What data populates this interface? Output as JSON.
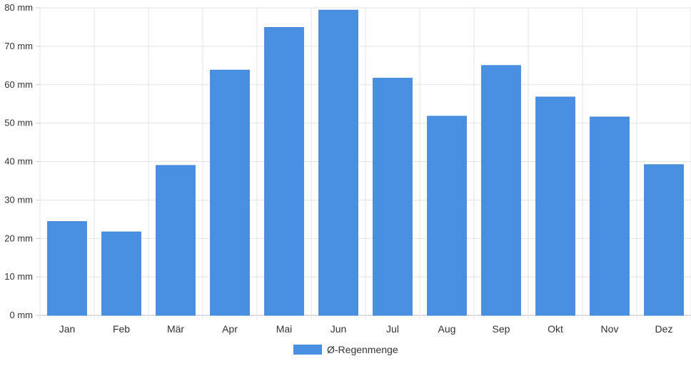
{
  "chart_data": {
    "type": "bar",
    "categories": [
      "Jan",
      "Feb",
      "Mär",
      "Apr",
      "Mai",
      "Jun",
      "Jul",
      "Aug",
      "Sep",
      "Okt",
      "Nov",
      "Dez"
    ],
    "series": [
      {
        "name": "Ø-Regenmenge",
        "values": [
          24.4,
          21.7,
          39.0,
          63.8,
          74.9,
          79.4,
          61.7,
          51.8,
          65.0,
          56.8,
          51.6,
          39.2
        ],
        "color": "#4a90e2"
      }
    ],
    "y_tick_labels": [
      "0 mm",
      "10 mm",
      "20 mm",
      "30 mm",
      "40 mm",
      "50 mm",
      "60 mm",
      "70 mm",
      "80 mm"
    ],
    "ylim": [
      0,
      80
    ],
    "grid": true,
    "legend_position": "bottom"
  }
}
